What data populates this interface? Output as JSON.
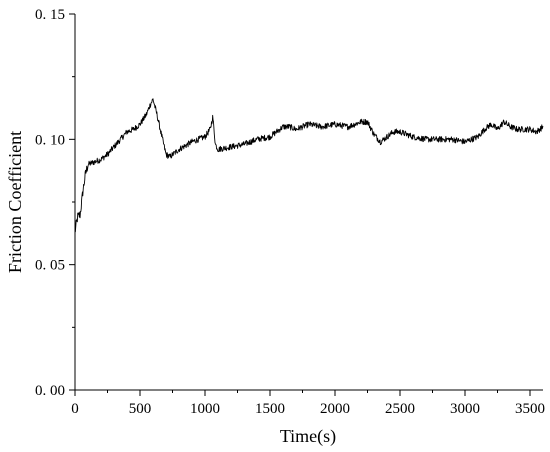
{
  "chart_data": {
    "type": "line",
    "xlabel": "Time(s)",
    "ylabel": "Friction Coefficient",
    "xlim": [
      0,
      3600
    ],
    "ylim": [
      0,
      0.15
    ],
    "x_ticks": [
      0,
      500,
      1000,
      1500,
      2000,
      2500,
      3000,
      3500
    ],
    "y_ticks": [
      0,
      0.05,
      0.1,
      0.15
    ],
    "x_tick_labels": [
      "0",
      "500",
      "1000",
      "1500",
      "2000",
      "2500",
      "3000",
      "3500"
    ],
    "y_tick_labels": [
      "0. 00",
      "0. 05",
      "0. 10",
      "0. 15"
    ],
    "grid": false,
    "series": [
      {
        "color": "#000000",
        "x": [
          0,
          20,
          40,
          60,
          80,
          100,
          150,
          200,
          250,
          300,
          350,
          400,
          450,
          500,
          550,
          580,
          600,
          630,
          660,
          700,
          730,
          800,
          900,
          1000,
          1040,
          1060,
          1080,
          1100,
          1200,
          1300,
          1400,
          1500,
          1600,
          1650,
          1700,
          1800,
          1900,
          2000,
          2100,
          2200,
          2250,
          2300,
          2350,
          2400,
          2450,
          2500,
          2600,
          2700,
          2800,
          2900,
          3000,
          3050,
          3100,
          3150,
          3200,
          3250,
          3300,
          3350,
          3400,
          3450,
          3500,
          3550,
          3600
        ],
        "y": [
          0.063,
          0.069,
          0.07,
          0.079,
          0.086,
          0.09,
          0.091,
          0.092,
          0.094,
          0.097,
          0.1,
          0.103,
          0.104,
          0.106,
          0.11,
          0.114,
          0.116,
          0.11,
          0.103,
          0.094,
          0.093,
          0.096,
          0.099,
          0.101,
          0.104,
          0.109,
          0.098,
          0.096,
          0.097,
          0.098,
          0.1,
          0.101,
          0.105,
          0.105,
          0.104,
          0.106,
          0.105,
          0.106,
          0.105,
          0.107,
          0.107,
          0.102,
          0.099,
          0.101,
          0.103,
          0.103,
          0.101,
          0.1,
          0.1,
          0.1,
          0.099,
          0.1,
          0.101,
          0.104,
          0.106,
          0.104,
          0.107,
          0.105,
          0.104,
          0.104,
          0.104,
          0.103,
          0.105
        ]
      }
    ]
  }
}
